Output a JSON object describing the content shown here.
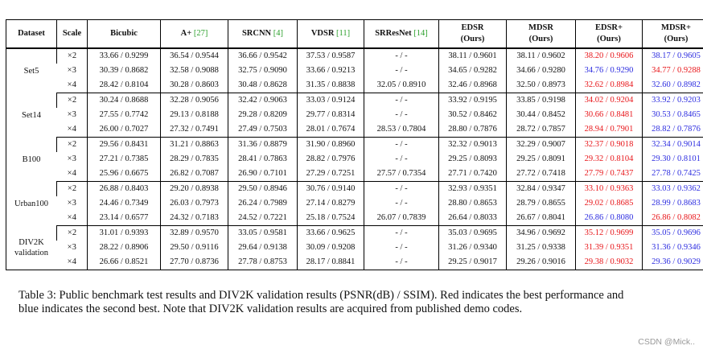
{
  "headers": {
    "dataset": "Dataset",
    "scale": "Scale",
    "bicubic": "Bicubic",
    "aplus": "A+",
    "aplus_ref": "[27]",
    "srcnn": "SRCNN",
    "srcnn_ref": "[4]",
    "vdsr": "VDSR",
    "vdsr_ref": "[11]",
    "srresnet": "SRResNet",
    "srresnet_ref": "[14]",
    "edsr": "EDSR",
    "edsr_sub": "(Ours)",
    "mdsr": "MDSR",
    "mdsr_sub": "(Ours)",
    "edsr_plus": "EDSR+",
    "edsr_plus_sub": "(Ours)",
    "mdsr_plus": "MDSR+",
    "mdsr_plus_sub": "(Ours)"
  },
  "colors": {
    "best": "#e8161a",
    "second": "#2d2de0",
    "ref": "#2ca02c"
  },
  "groups": [
    {
      "dataset": "Set5",
      "rows": [
        {
          "scale": "×2",
          "cells": [
            "33.66 / 0.9299",
            "36.54 / 0.9544",
            "36.66 / 0.9542",
            "37.53 / 0.9587",
            "- / -",
            "38.11 / 0.9601",
            "38.11 / 0.9602",
            "38.20 / 0.9606",
            "38.17 / 0.9605"
          ],
          "marks": [
            "",
            "",
            "",
            "",
            "",
            "",
            "",
            "red",
            "blue"
          ]
        },
        {
          "scale": "×3",
          "cells": [
            "30.39 / 0.8682",
            "32.58 / 0.9088",
            "32.75 / 0.9090",
            "33.66 / 0.9213",
            "- / -",
            "34.65 / 0.9282",
            "34.66 / 0.9280",
            "34.76 / 0.9290",
            "34.77 / 0.9288"
          ],
          "marks": [
            "",
            "",
            "",
            "",
            "",
            "",
            "",
            "blue",
            "red"
          ]
        },
        {
          "scale": "×4",
          "cells": [
            "28.42 / 0.8104",
            "30.28 / 0.8603",
            "30.48 / 0.8628",
            "31.35 / 0.8838",
            "32.05 / 0.8910",
            "32.46 / 0.8968",
            "32.50 / 0.8973",
            "32.62 / 0.8984",
            "32.60 / 0.8982"
          ],
          "marks": [
            "",
            "",
            "",
            "",
            "",
            "",
            "",
            "red",
            "blue"
          ]
        }
      ]
    },
    {
      "dataset": "Set14",
      "rows": [
        {
          "scale": "×2",
          "cells": [
            "30.24 / 0.8688",
            "32.28 / 0.9056",
            "32.42 / 0.9063",
            "33.03 / 0.9124",
            "- / -",
            "33.92 / 0.9195",
            "33.85 / 0.9198",
            "34.02 / 0.9204",
            "33.92 / 0.9203"
          ],
          "marks": [
            "",
            "",
            "",
            "",
            "",
            "",
            "",
            "red",
            "blue"
          ]
        },
        {
          "scale": "×3",
          "cells": [
            "27.55 / 0.7742",
            "29.13 / 0.8188",
            "29.28 / 0.8209",
            "29.77 / 0.8314",
            "- / -",
            "30.52 / 0.8462",
            "30.44 / 0.8452",
            "30.66 / 0.8481",
            "30.53 / 0.8465"
          ],
          "marks": [
            "",
            "",
            "",
            "",
            "",
            "",
            "",
            "red",
            "blue"
          ]
        },
        {
          "scale": "×4",
          "cells": [
            "26.00 / 0.7027",
            "27.32 / 0.7491",
            "27.49 / 0.7503",
            "28.01 / 0.7674",
            "28.53 / 0.7804",
            "28.80 / 0.7876",
            "28.72 / 0.7857",
            "28.94 / 0.7901",
            "28.82 / 0.7876"
          ],
          "marks": [
            "",
            "",
            "",
            "",
            "",
            "",
            "",
            "red",
            "blue"
          ]
        }
      ]
    },
    {
      "dataset": "B100",
      "rows": [
        {
          "scale": "×2",
          "cells": [
            "29.56 / 0.8431",
            "31.21 / 0.8863",
            "31.36 / 0.8879",
            "31.90 / 0.8960",
            "- / -",
            "32.32 / 0.9013",
            "32.29 / 0.9007",
            "32.37 / 0.9018",
            "32.34 / 0.9014"
          ],
          "marks": [
            "",
            "",
            "",
            "",
            "",
            "",
            "",
            "red",
            "blue"
          ]
        },
        {
          "scale": "×3",
          "cells": [
            "27.21 / 0.7385",
            "28.29 / 0.7835",
            "28.41 / 0.7863",
            "28.82 / 0.7976",
            "- / -",
            "29.25 / 0.8093",
            "29.25 / 0.8091",
            "29.32 / 0.8104",
            "29.30 / 0.8101"
          ],
          "marks": [
            "",
            "",
            "",
            "",
            "",
            "",
            "",
            "red",
            "blue"
          ]
        },
        {
          "scale": "×4",
          "cells": [
            "25.96 / 0.6675",
            "26.82 / 0.7087",
            "26.90 / 0.7101",
            "27.29 / 0.7251",
            "27.57 / 0.7354",
            "27.71 / 0.7420",
            "27.72 / 0.7418",
            "27.79 / 0.7437",
            "27.78 / 0.7425"
          ],
          "marks": [
            "",
            "",
            "",
            "",
            "",
            "",
            "",
            "red",
            "blue"
          ]
        }
      ]
    },
    {
      "dataset": "Urban100",
      "rows": [
        {
          "scale": "×2",
          "cells": [
            "26.88 / 0.8403",
            "29.20 / 0.8938",
            "29.50 / 0.8946",
            "30.76 / 0.9140",
            "- / -",
            "32.93 / 0.9351",
            "32.84 / 0.9347",
            "33.10 / 0.9363",
            "33.03 / 0.9362"
          ],
          "marks": [
            "",
            "",
            "",
            "",
            "",
            "",
            "",
            "red",
            "blue"
          ]
        },
        {
          "scale": "×3",
          "cells": [
            "24.46 / 0.7349",
            "26.03 / 0.7973",
            "26.24 / 0.7989",
            "27.14 / 0.8279",
            "- / -",
            "28.80 / 0.8653",
            "28.79 / 0.8655",
            "29.02 / 0.8685",
            "28.99 / 0.8683"
          ],
          "marks": [
            "",
            "",
            "",
            "",
            "",
            "",
            "",
            "red",
            "blue"
          ]
        },
        {
          "scale": "×4",
          "cells": [
            "23.14 / 0.6577",
            "24.32 / 0.7183",
            "24.52 / 0.7221",
            "25.18 / 0.7524",
            "26.07 / 0.7839",
            "26.64 / 0.8033",
            "26.67 / 0.8041",
            "26.86 / 0.8080",
            "26.86 / 0.8082"
          ],
          "marks": [
            "",
            "",
            "",
            "",
            "",
            "",
            "",
            "blue",
            "red"
          ]
        }
      ]
    },
    {
      "dataset": "DIV2K validation",
      "rows": [
        {
          "scale": "×2",
          "cells": [
            "31.01 / 0.9393",
            "32.89 / 0.9570",
            "33.05 / 0.9581",
            "33.66 / 0.9625",
            "- / -",
            "35.03 / 0.9695",
            "34.96 / 0.9692",
            "35.12 / 0.9699",
            "35.05 / 0.9696"
          ],
          "marks": [
            "",
            "",
            "",
            "",
            "",
            "",
            "",
            "red",
            "blue"
          ]
        },
        {
          "scale": "×3",
          "cells": [
            "28.22 / 0.8906",
            "29.50 / 0.9116",
            "29.64 / 0.9138",
            "30.09 / 0.9208",
            "- / -",
            "31.26 / 0.9340",
            "31.25 / 0.9338",
            "31.39 / 0.9351",
            "31.36 / 0.9346"
          ],
          "marks": [
            "",
            "",
            "",
            "",
            "",
            "",
            "",
            "red",
            "blue"
          ]
        },
        {
          "scale": "×4",
          "cells": [
            "26.66 / 0.8521",
            "27.70 / 0.8736",
            "27.78 / 0.8753",
            "28.17 / 0.8841",
            "- / -",
            "29.25 / 0.9017",
            "29.26 / 0.9016",
            "29.38 / 0.9032",
            "29.36 / 0.9029"
          ],
          "marks": [
            "",
            "",
            "",
            "",
            "",
            "",
            "",
            "red",
            "blue"
          ]
        }
      ]
    }
  ],
  "caption": "Table 3: Public benchmark test results and DIV2K validation results (PSNR(dB) / SSIM). Red indicates the best performance and blue indicates the second best. Note that DIV2K validation results are acquired from published demo codes.",
  "watermark": "CSDN @Mick.."
}
